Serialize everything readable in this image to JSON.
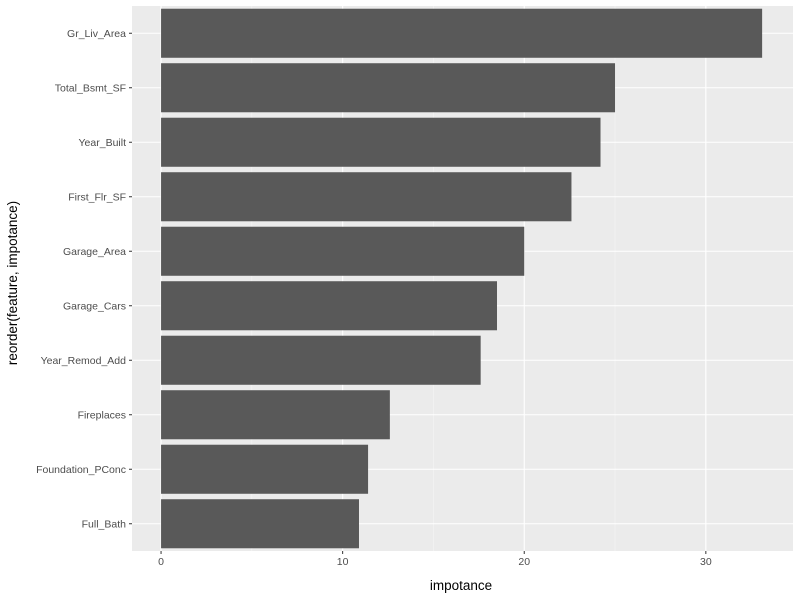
{
  "chart_data": {
    "type": "bar",
    "orientation": "horizontal",
    "categories": [
      "Gr_Liv_Area",
      "Total_Bsmt_SF",
      "Year_Built",
      "First_Flr_SF",
      "Garage_Area",
      "Garage_Cars",
      "Year_Remod_Add",
      "Fireplaces",
      "Foundation_PConc",
      "Full_Bath"
    ],
    "values": [
      33.1,
      25.0,
      24.2,
      22.6,
      20.0,
      18.5,
      17.6,
      12.6,
      11.4,
      10.9
    ],
    "xlabel": "impotance",
    "ylabel": "reorder(feature, impotance)",
    "xlim": [
      -1.6,
      34.8
    ],
    "xticks": [
      0,
      10,
      20,
      30
    ],
    "xtick_labels": [
      "0",
      "10",
      "20",
      "30"
    ],
    "grid": true,
    "colors": {
      "bar": "#595959",
      "panel": "#EBEBEB",
      "grid": "#FFFFFF"
    }
  }
}
